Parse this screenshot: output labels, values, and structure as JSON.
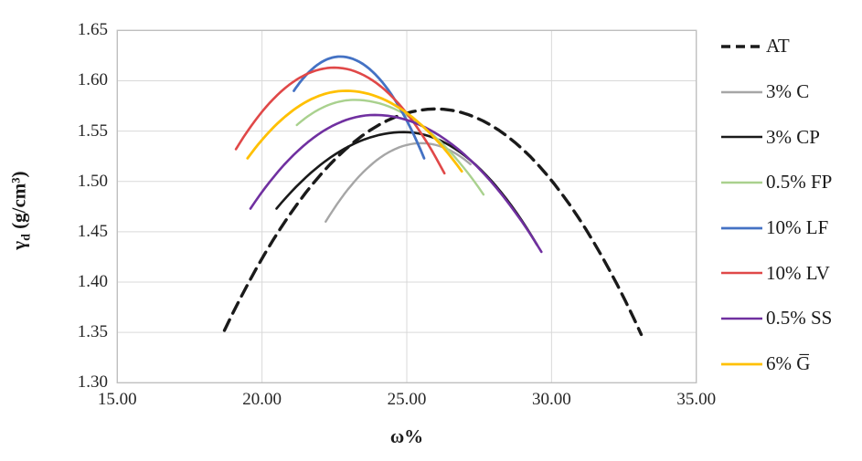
{
  "figure": {
    "xlabel": "ω%",
    "ylabel_symbol": "γ",
    "ylabel_subscript": "d",
    "ylabel_units": "(g/cm³)"
  },
  "chart_data": {
    "type": "line",
    "title": "",
    "xlabel": "ω%",
    "ylabel": "γd (g/cm³)",
    "xlim": [
      15.0,
      35.0
    ],
    "ylim": [
      1.3,
      1.65
    ],
    "x_ticks": [
      "15.00",
      "20.00",
      "25.00",
      "30.00",
      "35.00"
    ],
    "x_tick_values": [
      15,
      20,
      25,
      30,
      35
    ],
    "y_ticks": [
      "1.30",
      "1.35",
      "1.40",
      "1.45",
      "1.50",
      "1.55",
      "1.60",
      "1.65"
    ],
    "y_tick_values": [
      1.3,
      1.35,
      1.4,
      1.45,
      1.5,
      1.55,
      1.6,
      1.65
    ],
    "grid": true,
    "legend_position": "right",
    "grid_color": "#d9d9d9",
    "border_color": "#bfbfbf",
    "series": [
      {
        "name": "AT",
        "color": "#1a1a1a",
        "style": "dashed",
        "width": 3.4,
        "start": [
          18.7,
          1.352
        ],
        "peak": [
          26.0,
          1.572
        ],
        "end": [
          33.1,
          1.348
        ]
      },
      {
        "name": "3% C",
        "color": "#a6a6a6",
        "style": "solid",
        "width": 2.4,
        "start": [
          22.2,
          1.46
        ],
        "peak": [
          25.5,
          1.538
        ],
        "end": [
          27.2,
          1.517
        ]
      },
      {
        "name": "3% CP",
        "color": "#1a1a1a",
        "style": "solid",
        "width": 2.6,
        "start": [
          20.5,
          1.473
        ],
        "peak": [
          24.9,
          1.549
        ],
        "end": [
          29.5,
          1.437
        ]
      },
      {
        "name": "0.5% FP",
        "color": "#a9d18e",
        "style": "solid",
        "width": 2.4,
        "start": [
          21.2,
          1.556
        ],
        "peak": [
          23.2,
          1.581
        ],
        "end": [
          27.65,
          1.487
        ]
      },
      {
        "name": "10% LF",
        "color": "#4472c4",
        "style": "solid",
        "width": 2.8,
        "start": [
          21.1,
          1.59
        ],
        "peak": [
          22.7,
          1.624
        ],
        "end": [
          25.6,
          1.523
        ]
      },
      {
        "name": "10% LV",
        "color": "#e04848",
        "style": "solid",
        "width": 2.6,
        "start": [
          19.1,
          1.532
        ],
        "peak": [
          22.5,
          1.613
        ],
        "end": [
          26.3,
          1.508
        ]
      },
      {
        "name": "0.5% SS",
        "color": "#7030a0",
        "style": "solid",
        "width": 2.6,
        "start": [
          19.6,
          1.473
        ],
        "peak": [
          23.9,
          1.566
        ],
        "end": [
          29.65,
          1.43
        ]
      },
      {
        "name": "6% G̅",
        "color": "#ffc000",
        "style": "solid",
        "width": 2.8,
        "start": [
          19.5,
          1.523
        ],
        "peak": [
          22.9,
          1.59
        ],
        "end": [
          26.9,
          1.51
        ]
      }
    ]
  }
}
